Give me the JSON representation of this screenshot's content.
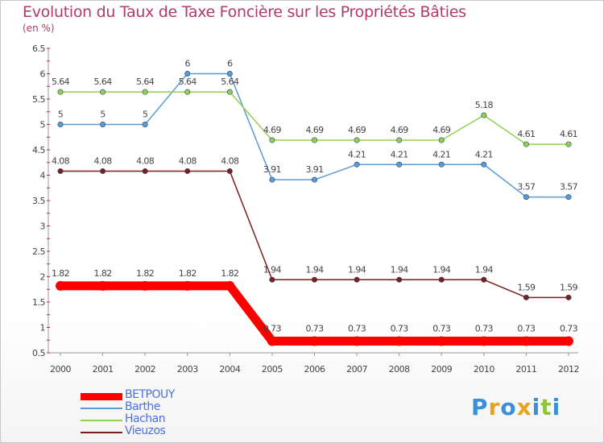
{
  "chart_data": {
    "type": "line",
    "title": "Evolution du Taux de Taxe Foncière sur les Propriétés Bâties",
    "unit_label": "(en %)",
    "x": [
      "2000",
      "2001",
      "2002",
      "2003",
      "2004",
      "2005",
      "2006",
      "2007",
      "2008",
      "2009",
      "2010",
      "2011",
      "2012"
    ],
    "ylim": [
      0.5,
      6.5
    ],
    "y_ticks": [
      "0.5",
      "1",
      "1.5",
      "2",
      "2.5",
      "3",
      "3.5",
      "4",
      "4.5",
      "5",
      "5.5",
      "6",
      "6.5"
    ],
    "grid": false,
    "legend_position": "bottom-left",
    "series": [
      {
        "name": "BETPOUY",
        "color": "#ff0000",
        "values": [
          1.82,
          1.82,
          1.82,
          1.82,
          1.82,
          0.73,
          0.73,
          0.73,
          0.73,
          0.73,
          0.73,
          0.73,
          0.73
        ],
        "labels": [
          "1.82",
          "1.82",
          "1.82",
          "1.82",
          "1.82",
          "0.73",
          "0.73",
          "0.73",
          "0.73",
          "0.73",
          "0.73",
          "0.73",
          "0.73"
        ]
      },
      {
        "name": "Barthe",
        "color": "#5b9bd5",
        "values": [
          5,
          5,
          5,
          6,
          6,
          3.91,
          3.91,
          4.21,
          4.21,
          4.21,
          4.21,
          3.57,
          3.57
        ],
        "labels": [
          "5",
          "5",
          "5",
          "6",
          "6",
          "3.91",
          "3.91",
          "4.21",
          "4.21",
          "4.21",
          "4.21",
          "3.57",
          "3.57"
        ]
      },
      {
        "name": "Hachan",
        "color": "#92d050",
        "values": [
          5.64,
          5.64,
          5.64,
          5.64,
          5.64,
          4.69,
          4.69,
          4.69,
          4.69,
          4.69,
          5.18,
          4.61,
          4.61
        ],
        "labels": [
          "5.64",
          "5.64",
          "5.64",
          "5.64",
          "5.64",
          "4.69",
          "4.69",
          "4.69",
          "4.69",
          "4.69",
          "5.18",
          "4.61",
          "4.61"
        ]
      },
      {
        "name": "Vieuzos",
        "color": "#7b1e1e",
        "values": [
          4.08,
          4.08,
          4.08,
          4.08,
          4.08,
          1.94,
          1.94,
          1.94,
          1.94,
          1.94,
          1.94,
          1.59,
          1.59
        ],
        "labels": [
          "4.08",
          "4.08",
          "4.08",
          "4.08",
          "4.08",
          "1.94",
          "1.94",
          "1.94",
          "1.94",
          "1.94",
          "1.94",
          "1.59",
          "1.59"
        ]
      }
    ]
  },
  "logo": {
    "letters": [
      "P",
      "r",
      "o",
      "x",
      "i",
      "t",
      "i"
    ],
    "colors": [
      "#3b8fd8",
      "#e8a21c",
      "#3b8fd8",
      "#e8a21c",
      "#3b8fd8",
      "#8cc63f",
      "#3b8fd8"
    ]
  }
}
